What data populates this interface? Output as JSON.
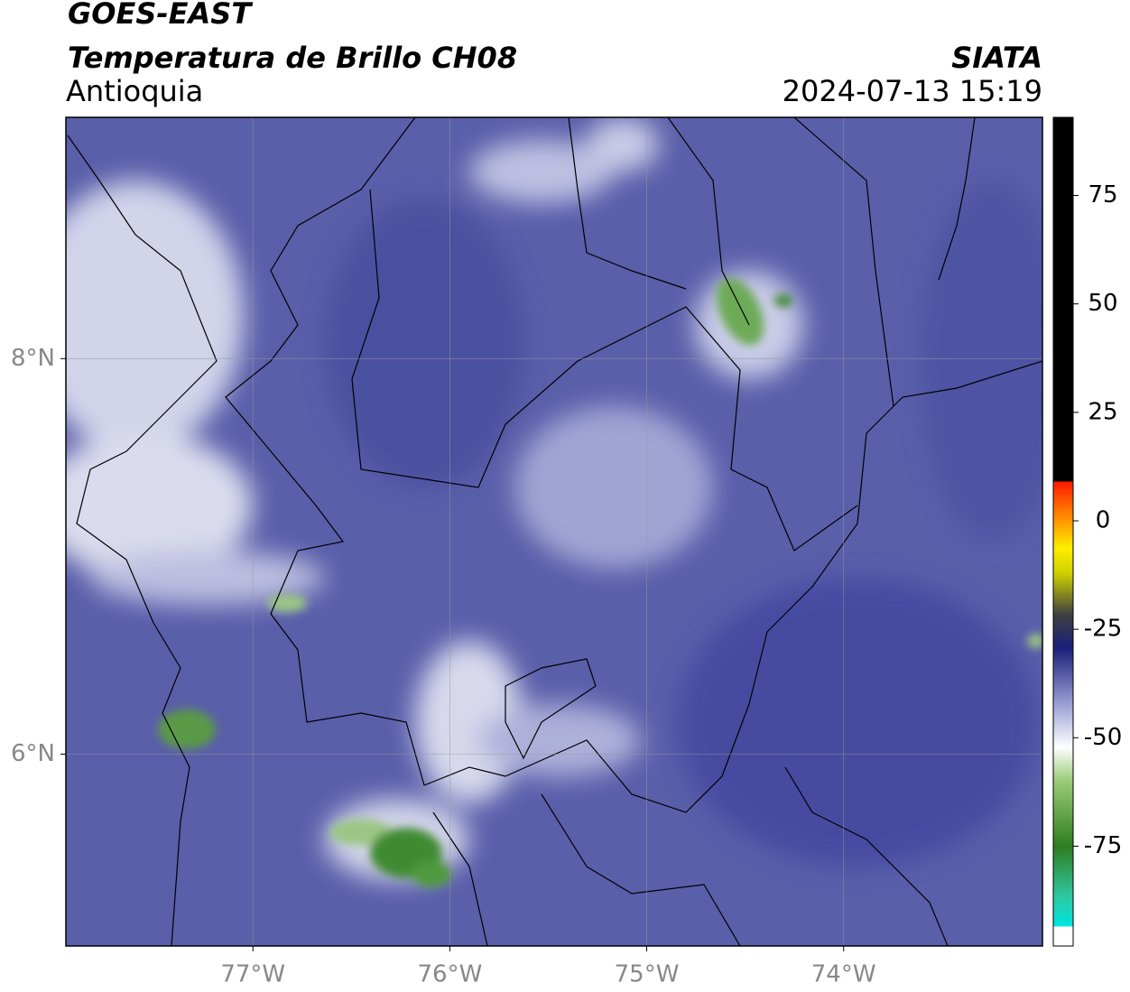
{
  "header": {
    "title": "GOES-EAST",
    "subtitle": "Temperatura de Brillo CH08",
    "region": "Antioquia",
    "source": "SIATA",
    "datetime": "2024-07-13 15:19"
  },
  "map": {
    "xlim": [
      -77.95,
      -72.99
    ],
    "ylim": [
      5.03,
      9.22
    ],
    "grid": true,
    "xticks": [
      {
        "value": -77,
        "label": "77°W"
      },
      {
        "value": -76,
        "label": "76°W"
      },
      {
        "value": -75,
        "label": "75°W"
      },
      {
        "value": -74,
        "label": "74°W"
      }
    ],
    "yticks": [
      {
        "value": 8,
        "label": "8°N"
      },
      {
        "value": 6,
        "label": "6°N"
      }
    ]
  },
  "colorbar": {
    "lim": [
      -98,
      93
    ],
    "ticks": [
      75,
      50,
      25,
      0,
      -25,
      -50,
      -75
    ]
  }
}
